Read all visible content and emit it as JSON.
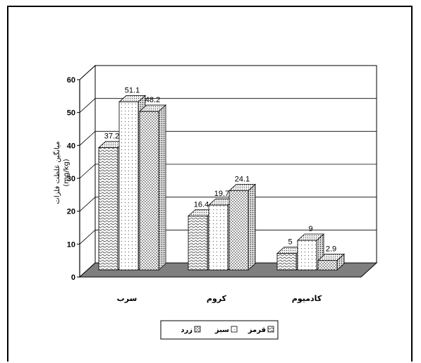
{
  "chart_data": {
    "type": "bar",
    "categories": [
      "سرب",
      "کروم",
      "کادمیوم"
    ],
    "series": [
      {
        "name": "قرمز",
        "values": [
          37.2,
          16.4,
          5
        ]
      },
      {
        "name": "سبز",
        "values": [
          51.1,
          19.7,
          9
        ]
      },
      {
        "name": "زرد",
        "values": [
          48.2,
          24.1,
          2.9
        ]
      }
    ],
    "ylim": [
      0,
      60
    ],
    "yticks": [
      0,
      10,
      20,
      30,
      40,
      50,
      60
    ],
    "ylabel": "میانگین غلظت فلزات",
    "yunit": "(mg/kg)",
    "legend_position": "bottom",
    "grid": true,
    "colors": {
      "floor": "#7f7f7f",
      "wall": "#ffffff",
      "grid": "#000000",
      "bar_face": "#ffffff",
      "bar_side": "#d9d9d9",
      "bar_top": "#e6e6e6"
    }
  }
}
